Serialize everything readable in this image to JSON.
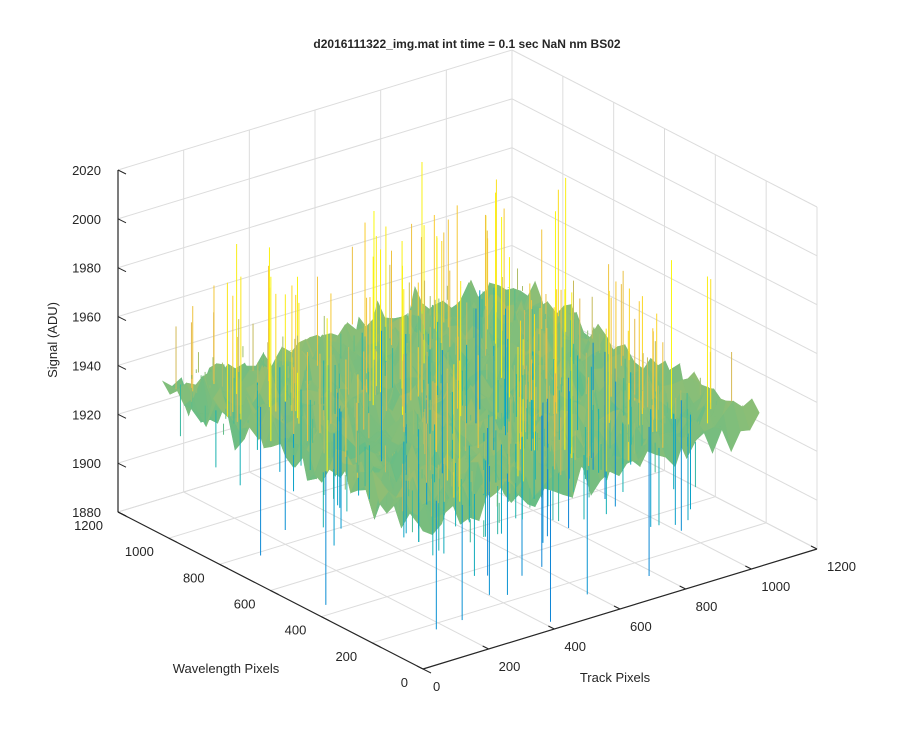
{
  "chart_data": {
    "type": "surface",
    "title": "d2016111322_img.mat int time = 0.1 sec  NaN nm BS02",
    "xlabel": "Track Pixels",
    "ylabel": "Wavelength Pixels",
    "zlabel": "Signal (ADU)",
    "xlim": [
      0,
      1200
    ],
    "ylim": [
      0,
      1200
    ],
    "zlim": [
      1880,
      2020
    ],
    "x_ticks": [
      "0",
      "200",
      "400",
      "600",
      "800",
      "1000",
      "1200"
    ],
    "y_ticks": [
      "0",
      "200",
      "400",
      "600",
      "800",
      "1000",
      "1200"
    ],
    "z_ticks": [
      "1880",
      "1900",
      "1920",
      "1940",
      "1960",
      "1980",
      "2000",
      "2020"
    ],
    "surface": {
      "x_range": [
        0,
        1024
      ],
      "y_range": [
        0,
        1024
      ],
      "mean_signal": 1940,
      "typical_range": [
        1905,
        1975
      ],
      "max_signal": 2005,
      "min_signal": 1880,
      "colormap": "parula"
    },
    "grid": true
  }
}
